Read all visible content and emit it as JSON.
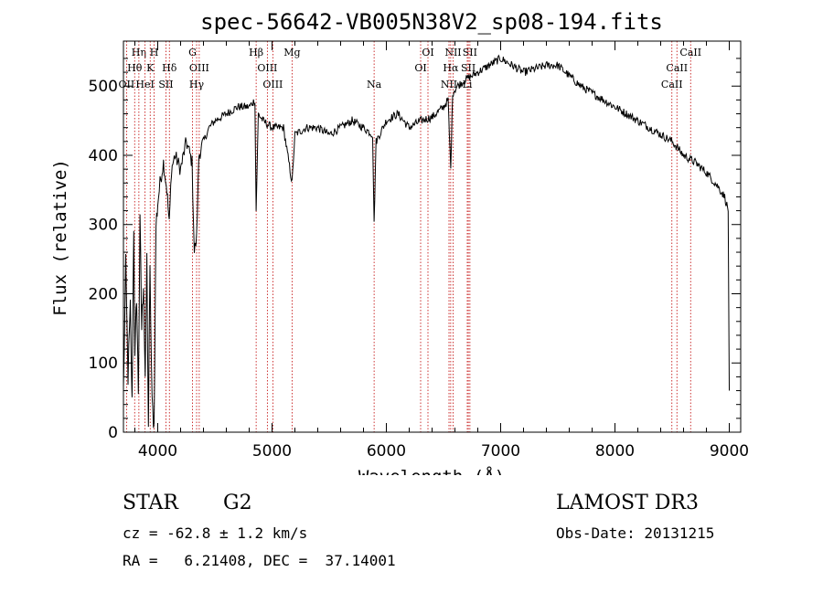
{
  "chart_data": {
    "type": "line",
    "title": "spec-56642-VB005N38V2_sp08-194.fits",
    "xlabel": "Wavelength (Å)",
    "ylabel": "Flux (relative)",
    "xlim": [
      3700,
      9100
    ],
    "ylim": [
      0,
      565
    ],
    "x_ticks": [
      4000,
      5000,
      6000,
      7000,
      8000,
      9000
    ],
    "y_ticks": [
      0,
      100,
      200,
      300,
      400,
      500
    ],
    "spectrum_anchors": [
      [
        3700,
        60
      ],
      [
        3720,
        240
      ],
      [
        3740,
        80
      ],
      [
        3760,
        180
      ],
      [
        3775,
        40
      ],
      [
        3790,
        300
      ],
      [
        3800,
        100
      ],
      [
        3815,
        200
      ],
      [
        3830,
        60
      ],
      [
        3845,
        300
      ],
      [
        3860,
        150
      ],
      [
        3875,
        220
      ],
      [
        3890,
        80
      ],
      [
        3905,
        250
      ],
      [
        3918,
        10
      ],
      [
        3932,
        230
      ],
      [
        3950,
        40
      ],
      [
        3968,
        10
      ],
      [
        3985,
        300
      ],
      [
        4000,
        330
      ],
      [
        4020,
        360
      ],
      [
        4050,
        390
      ],
      [
        4080,
        350
      ],
      [
        4101,
        300
      ],
      [
        4120,
        380
      ],
      [
        4150,
        400
      ],
      [
        4200,
        380
      ],
      [
        4250,
        420
      ],
      [
        4300,
        390
      ],
      [
        4320,
        260
      ],
      [
        4340,
        280
      ],
      [
        4360,
        400
      ],
      [
        4400,
        420
      ],
      [
        4450,
        440
      ],
      [
        4500,
        450
      ],
      [
        4600,
        460
      ],
      [
        4700,
        470
      ],
      [
        4800,
        470
      ],
      [
        4850,
        480
      ],
      [
        4861,
        320
      ],
      [
        4880,
        460
      ],
      [
        4920,
        450
      ],
      [
        5000,
        440
      ],
      [
        5100,
        440
      ],
      [
        5175,
        360
      ],
      [
        5200,
        430
      ],
      [
        5300,
        440
      ],
      [
        5400,
        440
      ],
      [
        5500,
        430
      ],
      [
        5600,
        440
      ],
      [
        5700,
        450
      ],
      [
        5800,
        440
      ],
      [
        5880,
        430
      ],
      [
        5893,
        300
      ],
      [
        5910,
        420
      ],
      [
        6000,
        450
      ],
      [
        6100,
        460
      ],
      [
        6200,
        440
      ],
      [
        6300,
        450
      ],
      [
        6400,
        455
      ],
      [
        6500,
        470
      ],
      [
        6540,
        480
      ],
      [
        6563,
        380
      ],
      [
        6580,
        490
      ],
      [
        6620,
        500
      ],
      [
        6700,
        510
      ],
      [
        6800,
        520
      ],
      [
        6900,
        530
      ],
      [
        7000,
        540
      ],
      [
        7100,
        530
      ],
      [
        7200,
        520
      ],
      [
        7300,
        525
      ],
      [
        7400,
        530
      ],
      [
        7500,
        530
      ],
      [
        7600,
        515
      ],
      [
        7700,
        500
      ],
      [
        7800,
        490
      ],
      [
        7900,
        480
      ],
      [
        8000,
        470
      ],
      [
        8100,
        460
      ],
      [
        8200,
        450
      ],
      [
        8300,
        440
      ],
      [
        8400,
        430
      ],
      [
        8500,
        420
      ],
      [
        8600,
        400
      ],
      [
        8700,
        390
      ],
      [
        8800,
        375
      ],
      [
        8900,
        355
      ],
      [
        8960,
        340
      ],
      [
        8990,
        320
      ],
      [
        9000,
        60
      ]
    ],
    "lines": [
      {
        "label": "Hη",
        "x": 3835,
        "row": 1
      },
      {
        "label": "H",
        "x": 3968,
        "row": 1
      },
      {
        "label": "G",
        "x": 4304,
        "row": 1
      },
      {
        "label": "Hβ",
        "x": 4861,
        "row": 1
      },
      {
        "label": "Mg",
        "x": 5175,
        "row": 1
      },
      {
        "label": "OI",
        "x": 6364,
        "row": 1
      },
      {
        "label": "NII",
        "x": 6584,
        "row": 1
      },
      {
        "label": "SII",
        "x": 6731,
        "row": 1
      },
      {
        "label": "CaII",
        "x": 8662,
        "row": 1
      },
      {
        "label": "Hθ",
        "x": 3798,
        "row": 2
      },
      {
        "label": "K",
        "x": 3934,
        "row": 2
      },
      {
        "label": "Hδ",
        "x": 4102,
        "row": 2
      },
      {
        "label": "OIII",
        "x": 4363,
        "row": 2
      },
      {
        "label": "OIII",
        "x": 4959,
        "row": 2
      },
      {
        "label": "OI",
        "x": 6300,
        "row": 2
      },
      {
        "label": "Hα",
        "x": 6563,
        "row": 2
      },
      {
        "label": "SII",
        "x": 6717,
        "row": 2
      },
      {
        "label": "CaII",
        "x": 8542,
        "row": 2
      },
      {
        "label": "OII",
        "x": 3727,
        "row": 3
      },
      {
        "label": "HeI",
        "x": 3889,
        "row": 3
      },
      {
        "label": "SII",
        "x": 4072,
        "row": 3
      },
      {
        "label": "Hγ",
        "x": 4340,
        "row": 3
      },
      {
        "label": "OIII",
        "x": 5007,
        "row": 3
      },
      {
        "label": "Na",
        "x": 5893,
        "row": 3
      },
      {
        "label": "NII",
        "x": 6548,
        "row": 3
      },
      {
        "label": "Li",
        "x": 6708,
        "row": 3
      },
      {
        "label": "CaII",
        "x": 8498,
        "row": 3
      }
    ]
  },
  "info": {
    "class_label": "STAR",
    "subclass": "G2",
    "survey": "LAMOST DR3",
    "cz": "cz = -62.8 ± 1.2 km/s",
    "obs_date": "Obs-Date: 20131215",
    "coords": "RA =   6.21408, DEC =  37.14001"
  }
}
